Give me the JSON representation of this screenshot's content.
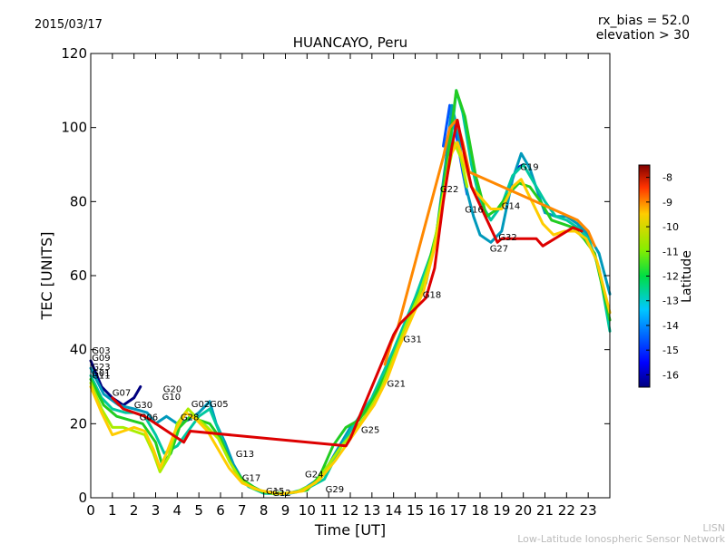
{
  "header": {
    "date": "2015/03/17",
    "title": "HUANCAYO, Peru",
    "rx_bias": "rx_bias = 52.0",
    "elevation": "elevation > 30"
  },
  "footer": {
    "line1": "LISN",
    "line2": "Low-Latitude Ionospheric Sensor Network"
  },
  "chart_data": {
    "type": "line",
    "title": "HUANCAYO, Peru",
    "xlabel": "Time [UT]",
    "ylabel": "TEC [UNITS]",
    "xlim": [
      0,
      24
    ],
    "ylim": [
      0,
      120
    ],
    "xticks": [
      "0",
      "1",
      "2",
      "3",
      "4",
      "5",
      "6",
      "7",
      "8",
      "9",
      "10",
      "11",
      "12",
      "13",
      "14",
      "15",
      "16",
      "17",
      "18",
      "19",
      "20",
      "21",
      "22",
      "23"
    ],
    "yticks": [
      "0",
      "20",
      "40",
      "60",
      "80",
      "100",
      "120"
    ],
    "colorbar": {
      "label": "Latitude",
      "range": [
        -16.5,
        -7.5
      ],
      "ticks": [
        "-8",
        "-9",
        "-10",
        "-11",
        "-12",
        "-13",
        "-14",
        "-15",
        "-16"
      ]
    },
    "series": [
      {
        "name": "dark-blue",
        "color": "#00007f",
        "points": [
          [
            0,
            37
          ],
          [
            0.5,
            30
          ],
          [
            1,
            27
          ],
          [
            1.5,
            25
          ],
          [
            2,
            27
          ],
          [
            2.3,
            30
          ]
        ]
      },
      {
        "name": "blue",
        "color": "#0055ff",
        "points": [
          [
            16.3,
            95
          ],
          [
            16.6,
            106
          ],
          [
            16.9,
            98
          ],
          [
            17.2,
            88
          ],
          [
            17.4,
            82
          ]
        ]
      },
      {
        "name": "blue-afternoon",
        "color": "#0000cc",
        "points": [
          [
            19.7,
            89
          ],
          [
            20.0,
            90
          ]
        ]
      },
      {
        "name": "teal",
        "color": "#0099bb",
        "points": [
          [
            0,
            35
          ],
          [
            0.6,
            28
          ],
          [
            1.3,
            25
          ],
          [
            2,
            24
          ],
          [
            2.6,
            23
          ],
          [
            3,
            20
          ],
          [
            3.5,
            22
          ],
          [
            4,
            20
          ],
          [
            4.5,
            21
          ],
          [
            5,
            23
          ],
          [
            5.5,
            26
          ],
          [
            5.8,
            20
          ],
          [
            6.2,
            15
          ],
          [
            6.6,
            9
          ],
          [
            7,
            5
          ],
          [
            7.5,
            3
          ],
          [
            8,
            1.5
          ],
          [
            8.5,
            1
          ],
          [
            9,
            1
          ],
          [
            9.5,
            1.5
          ],
          [
            10,
            3
          ],
          [
            10.5,
            5
          ],
          [
            11,
            9
          ],
          [
            11.5,
            14
          ],
          [
            12,
            19
          ],
          [
            12.5,
            22
          ],
          [
            13,
            25
          ],
          [
            13.5,
            30
          ],
          [
            14,
            38
          ],
          [
            14.5,
            45
          ],
          [
            15,
            52
          ],
          [
            15.5,
            58
          ],
          [
            16,
            72
          ],
          [
            16.4,
            90
          ],
          [
            16.7,
            106
          ],
          [
            17.0,
            98
          ],
          [
            17.3,
            85
          ],
          [
            17.7,
            76
          ],
          [
            18,
            71
          ],
          [
            18.5,
            69
          ],
          [
            19,
            72
          ],
          [
            19.5,
            86
          ],
          [
            19.9,
            93
          ],
          [
            20.3,
            89
          ],
          [
            20.7,
            82
          ],
          [
            21,
            77
          ],
          [
            21.5,
            76
          ],
          [
            22,
            76
          ],
          [
            22.5,
            74
          ],
          [
            23,
            71
          ],
          [
            23.5,
            66
          ],
          [
            24,
            55
          ]
        ]
      },
      {
        "name": "cyan-green",
        "color": "#00c8a0",
        "points": [
          [
            0,
            33
          ],
          [
            0.5,
            27
          ],
          [
            1,
            24
          ],
          [
            1.6,
            23
          ],
          [
            2,
            23
          ],
          [
            2.5,
            22
          ],
          [
            3,
            17
          ],
          [
            3.4,
            12
          ],
          [
            4,
            14
          ],
          [
            4.5,
            18
          ],
          [
            5,
            22
          ],
          [
            5.5,
            24
          ],
          [
            6,
            17
          ],
          [
            6.4,
            10
          ],
          [
            6.8,
            6
          ],
          [
            7.3,
            3
          ],
          [
            8,
            1.2
          ],
          [
            9,
            1
          ],
          [
            10,
            2.5
          ],
          [
            10.8,
            5
          ],
          [
            11.5,
            13
          ],
          [
            12.2,
            20
          ],
          [
            13,
            27
          ],
          [
            14,
            40
          ],
          [
            15,
            54
          ],
          [
            16,
            70
          ],
          [
            16.5,
            88
          ],
          [
            16.9,
            110
          ],
          [
            17.2,
            104
          ],
          [
            17.6,
            90
          ],
          [
            18,
            80
          ],
          [
            18.5,
            75
          ],
          [
            19,
            79
          ],
          [
            19.5,
            87
          ],
          [
            20,
            90
          ],
          [
            20.5,
            85
          ],
          [
            21,
            80
          ],
          [
            21.5,
            76
          ],
          [
            22,
            75
          ],
          [
            22.5,
            73
          ],
          [
            23,
            70
          ],
          [
            23.5,
            62
          ],
          [
            24,
            45
          ]
        ]
      },
      {
        "name": "green",
        "color": "#22cc22",
        "points": [
          [
            0,
            32
          ],
          [
            0.6,
            25
          ],
          [
            1.2,
            22
          ],
          [
            1.8,
            21
          ],
          [
            2.4,
            20
          ],
          [
            3,
            15
          ],
          [
            3.3,
            9
          ],
          [
            3.7,
            12
          ],
          [
            4.1,
            19
          ],
          [
            4.6,
            22
          ],
          [
            5,
            21
          ],
          [
            5.5,
            20
          ],
          [
            6,
            16
          ],
          [
            6.5,
            9
          ],
          [
            7,
            5
          ],
          [
            7.5,
            3
          ],
          [
            8,
            1.5
          ],
          [
            9,
            1.2
          ],
          [
            10,
            2
          ],
          [
            10.6,
            6
          ],
          [
            11.2,
            14
          ],
          [
            11.8,
            19
          ],
          [
            12.4,
            21
          ],
          [
            13,
            26
          ],
          [
            13.6,
            33
          ],
          [
            14.2,
            41
          ],
          [
            14.8,
            50
          ],
          [
            15.4,
            58
          ],
          [
            16,
            72
          ],
          [
            16.5,
            92
          ],
          [
            16.9,
            110
          ],
          [
            17.3,
            103
          ],
          [
            17.8,
            87
          ],
          [
            18.3,
            76
          ],
          [
            18.8,
            78
          ],
          [
            19.3,
            82
          ],
          [
            19.8,
            85
          ],
          [
            20.3,
            84
          ],
          [
            20.8,
            80
          ],
          [
            21.3,
            75
          ],
          [
            21.8,
            74
          ],
          [
            22.3,
            73
          ],
          [
            22.8,
            70
          ],
          [
            23.3,
            66
          ],
          [
            24,
            48
          ]
        ]
      },
      {
        "name": "yellow-green",
        "color": "#aaee00",
        "points": [
          [
            0,
            31
          ],
          [
            0.5,
            24
          ],
          [
            1,
            19
          ],
          [
            1.5,
            19
          ],
          [
            2,
            18
          ],
          [
            2.5,
            17
          ],
          [
            2.9,
            12
          ],
          [
            3.2,
            7
          ],
          [
            3.6,
            11
          ],
          [
            4,
            20
          ],
          [
            4.5,
            24
          ],
          [
            5,
            21
          ],
          [
            5.4,
            19
          ],
          [
            5.9,
            16
          ],
          [
            6.4,
            10
          ],
          [
            6.9,
            5
          ],
          [
            7.5,
            2.5
          ],
          [
            8.5,
            1
          ],
          [
            9.5,
            1.5
          ],
          [
            10.4,
            4
          ],
          [
            11,
            9
          ],
          [
            11.6,
            14
          ],
          [
            12.2,
            18
          ],
          [
            12.8,
            23
          ],
          [
            13.4,
            29
          ],
          [
            14,
            38
          ],
          [
            14.6,
            47
          ],
          [
            15.2,
            55
          ],
          [
            15.8,
            66
          ],
          [
            16.3,
            82
          ],
          [
            16.8,
            96
          ],
          [
            17.1,
            92
          ],
          [
            17.4,
            84
          ]
        ]
      },
      {
        "name": "yellow",
        "color": "#ffcc00",
        "points": [
          [
            0,
            30
          ],
          [
            0.5,
            23
          ],
          [
            1,
            17
          ],
          [
            1.5,
            18
          ],
          [
            2,
            19
          ],
          [
            2.5,
            18
          ],
          [
            2.9,
            13
          ],
          [
            3.2,
            8
          ],
          [
            3.5,
            12
          ],
          [
            3.9,
            18
          ],
          [
            4.4,
            23
          ],
          [
            4.9,
            21
          ],
          [
            5.4,
            18
          ],
          [
            5.9,
            13
          ],
          [
            6.4,
            8
          ],
          [
            7,
            4
          ],
          [
            7.8,
            2
          ],
          [
            8.8,
            1
          ],
          [
            9.8,
            1.8
          ],
          [
            10.6,
            5
          ],
          [
            11.3,
            10
          ],
          [
            11.9,
            15
          ],
          [
            12.5,
            20
          ],
          [
            13.1,
            25
          ],
          [
            13.7,
            32
          ],
          [
            14.2,
            40
          ],
          [
            14.8,
            48
          ],
          [
            15.4,
            56
          ],
          [
            16,
            70
          ],
          [
            16.6,
            92
          ],
          [
            16.95,
            96
          ],
          [
            17.3,
            90
          ],
          [
            17.6,
            84
          ],
          [
            18.5,
            78
          ],
          [
            19,
            78
          ],
          [
            19.5,
            84
          ],
          [
            19.9,
            86
          ],
          [
            20.4,
            80
          ],
          [
            20.9,
            74
          ],
          [
            21.4,
            71
          ],
          [
            21.9,
            72
          ],
          [
            22.4,
            72
          ],
          [
            22.9,
            70
          ],
          [
            23.4,
            64
          ],
          [
            24,
            50
          ]
        ]
      },
      {
        "name": "orange",
        "color": "#ff8800",
        "points": [
          [
            13.6,
            36
          ],
          [
            13.9,
            42
          ],
          [
            14.2,
            46
          ],
          [
            16.3,
            92
          ],
          [
            16.6,
            100
          ],
          [
            16.9,
            102
          ],
          [
            17.2,
            96
          ],
          [
            17.5,
            88
          ],
          [
            22.5,
            75
          ],
          [
            23,
            72
          ],
          [
            23.3,
            68
          ]
        ]
      },
      {
        "name": "red",
        "color": "#dd0000",
        "points": [
          [
            1.0,
            27
          ],
          [
            1.5,
            24
          ],
          [
            2.0,
            23
          ],
          [
            2.5,
            22
          ],
          [
            4.3,
            15
          ],
          [
            4.6,
            18
          ],
          [
            11.8,
            14
          ],
          [
            12.0,
            16
          ],
          [
            14.0,
            44
          ],
          [
            14.3,
            47
          ],
          [
            15.5,
            54
          ],
          [
            15.9,
            62
          ],
          [
            16.3,
            80
          ],
          [
            16.7,
            95
          ],
          [
            16.95,
            102
          ],
          [
            17.3,
            92
          ],
          [
            17.6,
            84
          ],
          [
            18.8,
            69
          ],
          [
            19.0,
            70
          ],
          [
            20.6,
            70
          ],
          [
            20.9,
            68
          ],
          [
            22.3,
            73
          ],
          [
            22.7,
            72
          ]
        ]
      }
    ],
    "annotations": [
      {
        "text": "G03",
        "x": 0.05,
        "y": 39
      },
      {
        "text": "G09",
        "x": 0.05,
        "y": 37
      },
      {
        "text": "G23",
        "x": 0.05,
        "y": 34.5
      },
      {
        "text": "G01",
        "x": 0.05,
        "y": 32.8
      },
      {
        "text": "G11",
        "x": 0.05,
        "y": 32.2
      },
      {
        "text": "G07",
        "x": 1.0,
        "y": 27.5
      },
      {
        "text": "G30",
        "x": 2.0,
        "y": 24.2
      },
      {
        "text": "G06",
        "x": 2.25,
        "y": 21
      },
      {
        "text": "G20",
        "x": 3.35,
        "y": 28.5
      },
      {
        "text": "G10",
        "x": 3.3,
        "y": 26.5
      },
      {
        "text": "G02",
        "x": 4.65,
        "y": 24.5
      },
      {
        "text": "G05",
        "x": 5.5,
        "y": 24.5
      },
      {
        "text": "G28",
        "x": 4.15,
        "y": 21
      },
      {
        "text": "G13",
        "x": 6.7,
        "y": 11
      },
      {
        "text": "G17",
        "x": 7.0,
        "y": 4.5
      },
      {
        "text": "G15",
        "x": 8.1,
        "y": 1
      },
      {
        "text": "G12",
        "x": 8.4,
        "y": 0.5
      },
      {
        "text": "G24",
        "x": 9.9,
        "y": 5.5
      },
      {
        "text": "G29",
        "x": 10.85,
        "y": 1.5
      },
      {
        "text": "G25",
        "x": 12.5,
        "y": 17.5
      },
      {
        "text": "G21",
        "x": 13.7,
        "y": 30
      },
      {
        "text": "G31",
        "x": 14.45,
        "y": 42
      },
      {
        "text": "G18",
        "x": 15.35,
        "y": 54
      },
      {
        "text": "G22",
        "x": 16.15,
        "y": 82.5
      },
      {
        "text": "G16",
        "x": 17.3,
        "y": 77
      },
      {
        "text": "G14",
        "x": 19.0,
        "y": 78
      },
      {
        "text": "G19",
        "x": 19.85,
        "y": 88.5
      },
      {
        "text": "G32",
        "x": 18.85,
        "y": 69.5
      },
      {
        "text": "G27",
        "x": 18.45,
        "y": 66.5
      }
    ]
  }
}
